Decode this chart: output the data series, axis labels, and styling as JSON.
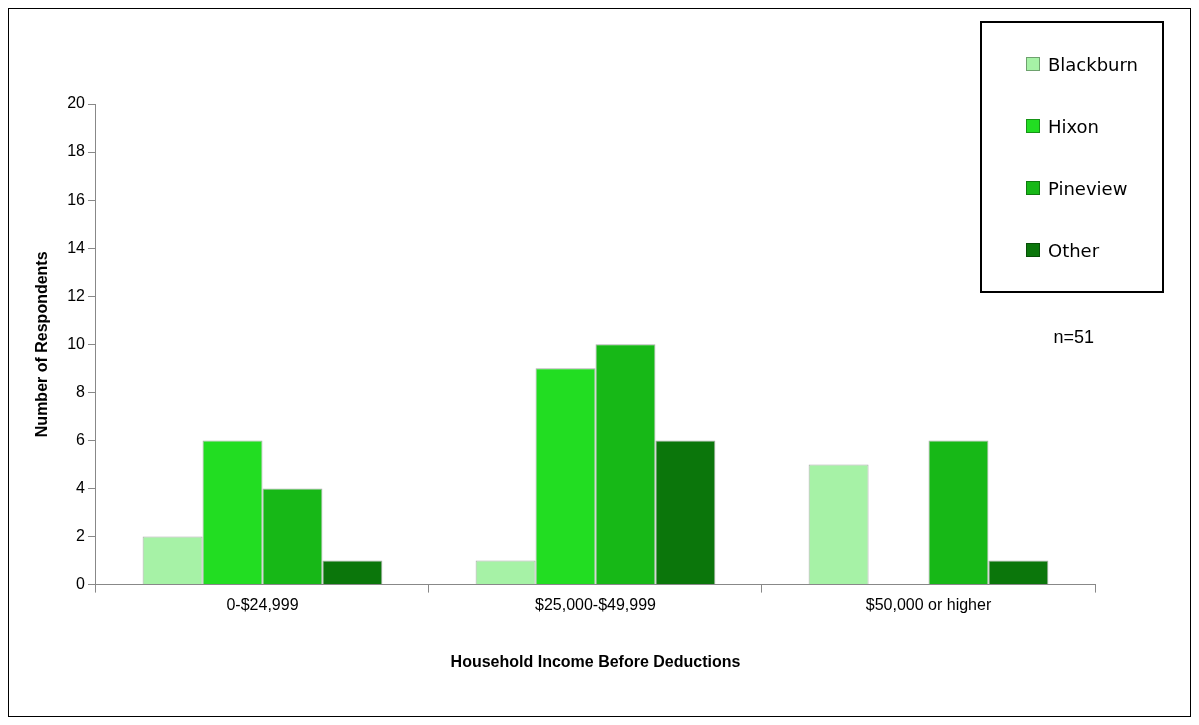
{
  "chart_data": {
    "type": "bar",
    "xlabel": "Household Income Before Deductions",
    "ylabel": "Number of Respondents",
    "categories": [
      "0-$24,999",
      "$25,000-$49,999",
      "$50,000 or higher"
    ],
    "series": [
      {
        "name": "Blackburn",
        "color": "#a6f2a6",
        "values": [
          2,
          1,
          5
        ]
      },
      {
        "name": "Hixon",
        "color": "#22dd22",
        "values": [
          6,
          9,
          0
        ]
      },
      {
        "name": "Pineview",
        "color": "#17b817",
        "values": [
          4,
          10,
          6
        ]
      },
      {
        "name": "Other",
        "color": "#0b760b",
        "values": [
          1,
          6,
          1
        ]
      }
    ],
    "ylim": [
      0,
      20
    ],
    "yticks": [
      0,
      2,
      4,
      6,
      8,
      10,
      12,
      14,
      16,
      18,
      20
    ],
    "grid": false,
    "legend": "top right",
    "annotations": [
      "n=51"
    ]
  }
}
